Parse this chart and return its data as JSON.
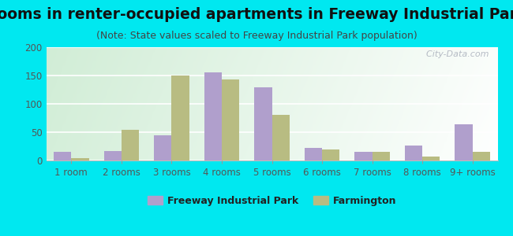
{
  "title": "Rooms in renter-occupied apartments in Freeway Industrial Park",
  "subtitle": "(Note: State values scaled to Freeway Industrial Park population)",
  "categories": [
    "1 room",
    "2 rooms",
    "3 rooms",
    "4 rooms",
    "5 rooms",
    "6 rooms",
    "7 rooms",
    "8 rooms",
    "9+ rooms"
  ],
  "freeway_values": [
    15,
    17,
    44,
    155,
    129,
    22,
    15,
    27,
    64
  ],
  "farmington_values": [
    4,
    54,
    150,
    143,
    80,
    20,
    15,
    7,
    15
  ],
  "freeway_color": "#b09fcc",
  "farmington_color": "#b8bc82",
  "background_color": "#00e8f0",
  "ylim": [
    0,
    200
  ],
  "yticks": [
    0,
    50,
    100,
    150,
    200
  ],
  "watermark": "  City-Data.com",
  "legend_freeway": "Freeway Industrial Park",
  "legend_farmington": "Farmington",
  "title_fontsize": 13.5,
  "subtitle_fontsize": 9,
  "tick_fontsize": 8.5,
  "grid_color": "#ffffff",
  "tick_color": "#555555"
}
